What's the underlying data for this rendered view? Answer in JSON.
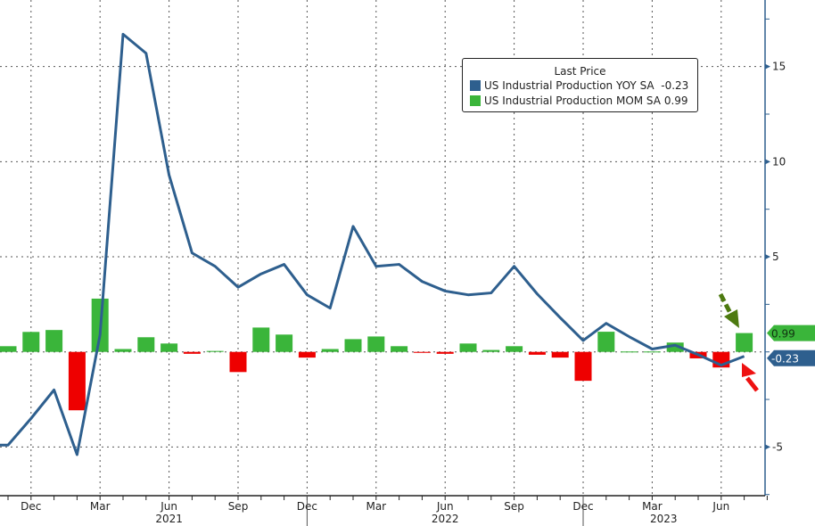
{
  "chart_data": {
    "type": "bar+line",
    "legend_title": "Last Price",
    "legend_placement": "top-right",
    "x": [
      "Nov 2020",
      "Dec 2020",
      "Jan 2021",
      "Feb 2021",
      "Mar 2021",
      "Apr 2021",
      "May 2021",
      "Jun 2021",
      "Jul 2021",
      "Aug 2021",
      "Sep 2021",
      "Oct 2021",
      "Nov 2021",
      "Dec 2021",
      "Jan 2022",
      "Feb 2022",
      "Mar 2022",
      "Apr 2022",
      "May 2022",
      "Jun 2022",
      "Jul 2022",
      "Aug 2022",
      "Sep 2022",
      "Oct 2022",
      "Nov 2022",
      "Dec 2022",
      "Jan 2023",
      "Feb 2023",
      "Mar 2023",
      "Apr 2023",
      "May 2023",
      "Jun 2023",
      "Jul 2023"
    ],
    "series": [
      {
        "name": "US Industrial Production YOY SA",
        "type": "line",
        "last_label": "-0.23",
        "color": "#2e5f8e",
        "values": [
          -4.9,
          -3.5,
          -2.0,
          -5.4,
          0.9,
          16.7,
          15.7,
          9.3,
          5.2,
          4.5,
          3.4,
          4.1,
          4.6,
          3.0,
          2.3,
          6.6,
          4.5,
          4.6,
          3.7,
          3.2,
          3.0,
          3.1,
          4.5,
          3.05,
          1.8,
          0.6,
          1.5,
          0.8,
          0.15,
          0.35,
          -0.15,
          -0.7,
          -0.23
        ]
      },
      {
        "name": "US Industrial Production MOM SA",
        "type": "bar",
        "last_label": "0.99",
        "color": "#3ab53a",
        "negative_color": "#ee0000",
        "values": [
          0.3,
          1.05,
          1.15,
          -3.07,
          2.8,
          0.15,
          0.77,
          0.44,
          -0.1,
          0.05,
          -1.06,
          1.28,
          0.91,
          -0.3,
          0.15,
          0.67,
          0.81,
          0.3,
          -0.05,
          -0.1,
          0.44,
          0.1,
          0.3,
          -0.15,
          -0.3,
          -1.52,
          1.06,
          0.02,
          0.02,
          0.49,
          -0.34,
          -0.82,
          0.99
        ]
      }
    ],
    "y_ticks": [
      15,
      10,
      5,
      -5
    ],
    "ylim": [
      -7.56,
      18.5
    ],
    "x_tick_labels": [
      {
        "label": "Dec",
        "index": 1
      },
      {
        "label": "Mar",
        "index": 4
      },
      {
        "label": "Jun",
        "index": 7
      },
      {
        "label": "Sep",
        "index": 10
      },
      {
        "label": "Dec",
        "index": 13
      },
      {
        "label": "Mar",
        "index": 16
      },
      {
        "label": "Jun",
        "index": 19
      },
      {
        "label": "Sep",
        "index": 22
      },
      {
        "label": "Dec",
        "index": 25
      },
      {
        "label": "Mar",
        "index": 28
      },
      {
        "label": "Jun",
        "index": 31
      }
    ],
    "year_labels": [
      {
        "label": "2021",
        "index": 7
      },
      {
        "label": "2022",
        "index": 19
      },
      {
        "label": "2023",
        "index": 28.5
      }
    ],
    "grid": true,
    "axis_position": "right"
  }
}
